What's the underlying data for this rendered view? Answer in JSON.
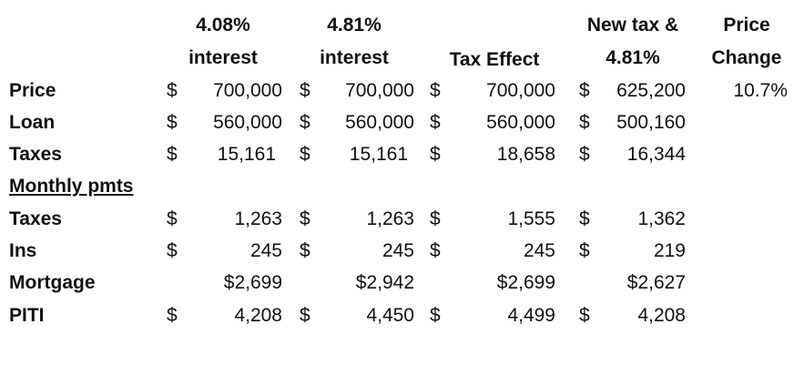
{
  "header": {
    "col1": {
      "line1": "4.08%",
      "line2": "interest"
    },
    "col2": {
      "line1": "4.81%",
      "line2": "interest"
    },
    "col3": {
      "line2": "Tax Effect"
    },
    "col4": {
      "line1": "New tax &",
      "line2": "4.81%"
    },
    "col5": {
      "line1": "Price",
      "line2": "Change"
    }
  },
  "rows": {
    "price": {
      "label": "Price",
      "c1": "700,000",
      "c2": "700,000",
      "c3": "700,000",
      "c4": "625,200",
      "change": "10.7%"
    },
    "loan": {
      "label": "Loan",
      "c1": "560,000",
      "c2": "560,000",
      "c3": "560,000",
      "c4": "500,160"
    },
    "taxes": {
      "label": "Taxes",
      "c1": "15,161",
      "c2": "15,161",
      "c3": "18,658",
      "c4": "16,344"
    },
    "monthly": {
      "label": "Monthly pmts"
    },
    "m_taxes": {
      "label": "Taxes",
      "c1": "1,263",
      "c2": "1,263",
      "c3": "1,555",
      "c4": "1,362"
    },
    "ins": {
      "label": "Ins",
      "c1": "245",
      "c2": "245",
      "c3": "245",
      "c4": "219"
    },
    "mortgage": {
      "label": "Mortgage",
      "c1": "$2,699",
      "c2": "$2,942",
      "c3": "$2,699",
      "c4": "$2,627"
    },
    "piti": {
      "label": "PITI",
      "c1": "4,208",
      "c2": "4,450",
      "c3": "4,499",
      "c4": "4,208"
    }
  },
  "currency_symbol": "$"
}
